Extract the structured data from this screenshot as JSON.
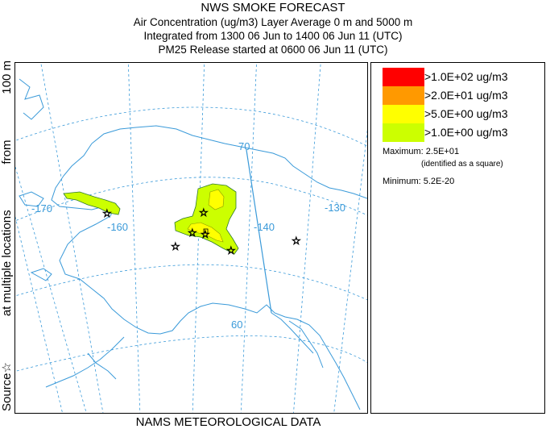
{
  "title": {
    "line1": "NWS SMOKE FORECAST",
    "line2": "Air Concentration (ug/m3) Layer Average    0 m and  5000 m",
    "line3": "Integrated from 1300 06 Jun to 1400 06 Jun 11 (UTC)",
    "line4": "PM25 Release started at 0600 06 Jun 11 (UTC)"
  },
  "side_label": {
    "source": "Source",
    "star": "☆",
    "locations": "at multiple locations",
    "from": "from",
    "height": "100 m"
  },
  "footer": "NAMS METEOROLOGICAL DATA",
  "map": {
    "lat_labels": [
      "70",
      "60"
    ],
    "lon_labels": [
      "-170",
      "-160",
      "-140",
      "-130"
    ],
    "colors": {
      "ocean_coast": "#3a9ad9",
      "graticule": "#3a9ad9"
    }
  },
  "legend": {
    "items": [
      {
        "color": "#ff0000",
        "label": ">1.0E+02 ug/m3"
      },
      {
        "color": "#ff9900",
        "label": ">2.0E+01 ug/m3"
      },
      {
        "color": "#ffff00",
        "label": ">5.0E+00 ug/m3"
      },
      {
        "color": "#ccff00",
        "label": ">1.0E+00 ug/m3"
      }
    ],
    "maximum_label": "Maximum:",
    "maximum_value": "2.5E+01",
    "maximum_note": "(identified as a square)",
    "minimum_label": "Minimum:",
    "minimum_value": "5.2E-20"
  }
}
